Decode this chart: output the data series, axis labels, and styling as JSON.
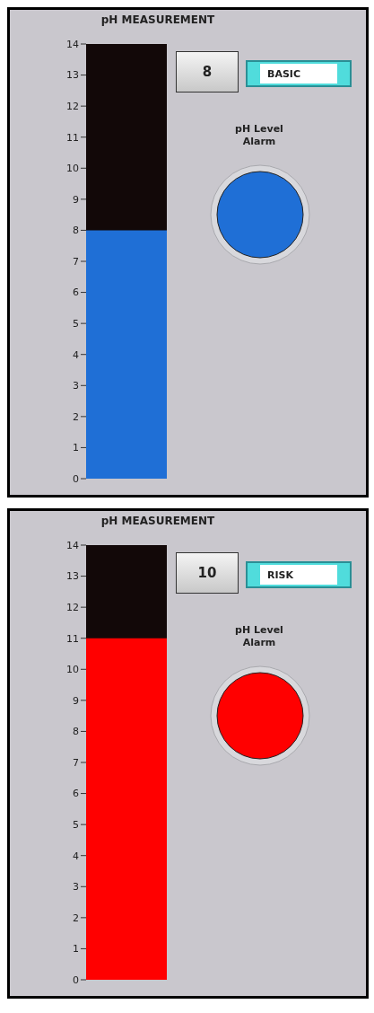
{
  "chart_data": [
    {
      "type": "bar",
      "title": "pH MEASUREMENT",
      "categories": [
        null
      ],
      "values": [
        8
      ],
      "color": "#1f6fd6",
      "ylim": [
        0,
        14
      ],
      "yticks": [
        0,
        1,
        2,
        3,
        4,
        5,
        6,
        7,
        8,
        9,
        10,
        11,
        12,
        13,
        14
      ],
      "tick_labels": "y",
      "annotations": [
        "8",
        "BASIC",
        "pH Level Alarm"
      ]
    },
    {
      "type": "bar",
      "title": "pH MEASUREMENT",
      "categories": [
        null
      ],
      "values": [
        11
      ],
      "color": "#ff0000",
      "ylim": [
        0,
        14
      ],
      "yticks": [
        0,
        1,
        2,
        3,
        4,
        5,
        6,
        7,
        8,
        9,
        10,
        11,
        12,
        13,
        14
      ],
      "tick_labels": "y",
      "annotations": [
        "10",
        "RISK",
        "pH Level Alarm"
      ]
    }
  ]
}
